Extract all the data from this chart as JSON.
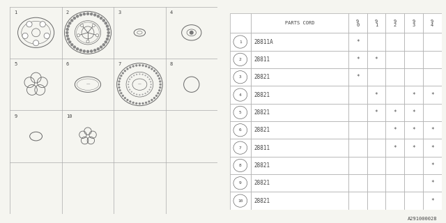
{
  "title": "A291000028",
  "bg_color": "#f5f5f0",
  "table_bg": "#ffffff",
  "rows": [
    {
      "num": "1",
      "part": "28811A",
      "cols": [
        "*",
        "",
        "",
        "",
        ""
      ]
    },
    {
      "num": "2",
      "part": "28811",
      "cols": [
        "*",
        "*",
        "",
        "",
        ""
      ]
    },
    {
      "num": "3",
      "part": "28821",
      "cols": [
        "*",
        "",
        "",
        "",
        ""
      ]
    },
    {
      "num": "4",
      "part": "28821",
      "cols": [
        "",
        "*",
        "",
        "*",
        "*"
      ]
    },
    {
      "num": "5",
      "part": "28821",
      "cols": [
        "",
        "*",
        "*",
        "*",
        ""
      ]
    },
    {
      "num": "6",
      "part": "28821",
      "cols": [
        "",
        "",
        "*",
        "*",
        "*"
      ]
    },
    {
      "num": "7",
      "part": "28811",
      "cols": [
        "",
        "",
        "*",
        "*",
        "*"
      ]
    },
    {
      "num": "8",
      "part": "28821",
      "cols": [
        "",
        "",
        "",
        "",
        "*"
      ]
    },
    {
      "num": "9",
      "part": "28821",
      "cols": [
        "",
        "",
        "",
        "",
        "*"
      ]
    },
    {
      "num": "10",
      "part": "28821",
      "cols": [
        "",
        "",
        "",
        "",
        "*"
      ]
    }
  ],
  "diagram_parts": [
    {
      "num": "1",
      "row": 0,
      "col": 0,
      "type": "hub_oval"
    },
    {
      "num": "2",
      "row": 0,
      "col": 1,
      "type": "hub_large"
    },
    {
      "num": "3",
      "row": 0,
      "col": 2,
      "type": "oval_tiny"
    },
    {
      "num": "4",
      "row": 0,
      "col": 3,
      "type": "cap_medium"
    },
    {
      "num": "5",
      "row": 1,
      "col": 0,
      "type": "flower"
    },
    {
      "num": "6",
      "row": 1,
      "col": 1,
      "type": "ellipse_plain"
    },
    {
      "num": "7",
      "row": 1,
      "col": 2,
      "type": "hub_large2"
    },
    {
      "num": "8",
      "row": 1,
      "col": 3,
      "type": "circle_sm"
    },
    {
      "num": "9",
      "row": 2,
      "col": 0,
      "type": "oval_sm"
    },
    {
      "num": "10",
      "row": 2,
      "col": 1,
      "type": "flower2"
    }
  ],
  "line_color": "#aaaaaa",
  "edge_color": "#666666",
  "text_color": "#444444",
  "font_size": 5.5
}
